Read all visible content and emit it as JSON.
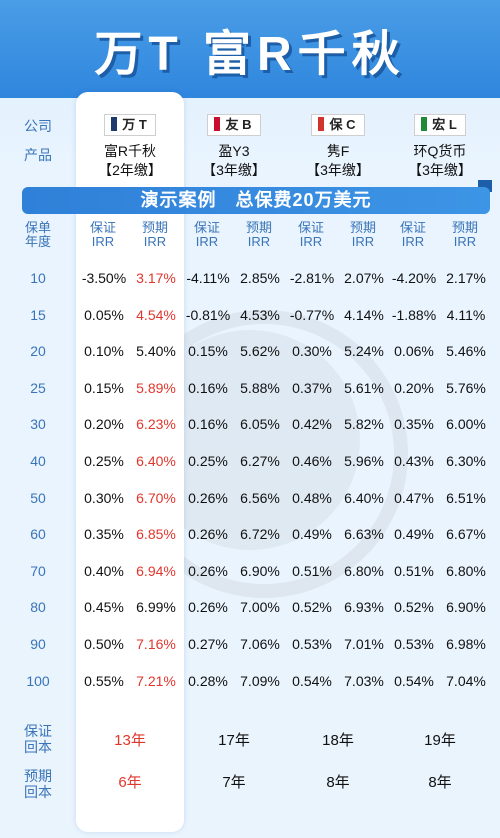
{
  "title": "万T  富R千秋",
  "labels": {
    "company": "公司",
    "product": "产品",
    "baonian_a": "保单",
    "baonian_b": "年度",
    "guar_payback_a": "保证",
    "guar_payback_b": "回本",
    "proj_payback_a": "预期",
    "proj_payback_b": "回本"
  },
  "banner": "演示案例　总保费20万美元",
  "columns": [
    {
      "tag": "万 T",
      "flag_color": "#1d3a6e",
      "product": "富R千秋",
      "term": "【2年缴】",
      "guar_hdr_a": "保证",
      "guar_hdr_b": "IRR",
      "proj_hdr_a": "预期",
      "proj_hdr_b": "IRR",
      "guar_payback": "13年",
      "proj_payback": "6年"
    },
    {
      "tag": "友 B",
      "flag_color": "#c8102e",
      "product": "盈Y3",
      "term": "【3年缴】",
      "guar_hdr_a": "保证",
      "guar_hdr_b": "IRR",
      "proj_hdr_a": "预期",
      "proj_hdr_b": "IRR",
      "guar_payback": "17年",
      "proj_payback": "7年"
    },
    {
      "tag": "保 C",
      "flag_color": "#d0342c",
      "product": "隽F",
      "term": "【3年缴】",
      "guar_hdr_a": "保证",
      "guar_hdr_b": "IRR",
      "proj_hdr_a": "预期",
      "proj_hdr_b": "IRR",
      "guar_payback": "18年",
      "proj_payback": "8年"
    },
    {
      "tag": "宏 L",
      "flag_color": "#1f8a3a",
      "product": "环Q货币",
      "term": "【3年缴】",
      "guar_hdr_a": "保证",
      "guar_hdr_b": "IRR",
      "proj_hdr_a": "预期",
      "proj_hdr_b": "IRR",
      "guar_payback": "19年",
      "proj_payback": "8年"
    }
  ],
  "rows": [
    {
      "year": "10",
      "vals": [
        "-3.50%",
        "3.17%",
        "-4.11%",
        "2.85%",
        "-2.81%",
        "2.07%",
        "-4.20%",
        "2.17%"
      ],
      "red": true
    },
    {
      "year": "15",
      "vals": [
        "0.05%",
        "4.54%",
        "-0.81%",
        "4.53%",
        "-0.77%",
        "4.14%",
        "-1.88%",
        "4.11%"
      ],
      "red": true
    },
    {
      "year": "20",
      "vals": [
        "0.10%",
        "5.40%",
        "0.15%",
        "5.62%",
        "0.30%",
        "5.24%",
        "0.06%",
        "5.46%"
      ],
      "red": false
    },
    {
      "year": "25",
      "vals": [
        "0.15%",
        "5.89%",
        "0.16%",
        "5.88%",
        "0.37%",
        "5.61%",
        "0.20%",
        "5.76%"
      ],
      "red": true
    },
    {
      "year": "30",
      "vals": [
        "0.20%",
        "6.23%",
        "0.16%",
        "6.05%",
        "0.42%",
        "5.82%",
        "0.35%",
        "6.00%"
      ],
      "red": true
    },
    {
      "year": "40",
      "vals": [
        "0.25%",
        "6.40%",
        "0.25%",
        "6.27%",
        "0.46%",
        "5.96%",
        "0.43%",
        "6.30%"
      ],
      "red": true
    },
    {
      "year": "50",
      "vals": [
        "0.30%",
        "6.70%",
        "0.26%",
        "6.56%",
        "0.48%",
        "6.40%",
        "0.47%",
        "6.51%"
      ],
      "red": true
    },
    {
      "year": "60",
      "vals": [
        "0.35%",
        "6.85%",
        "0.26%",
        "6.72%",
        "0.49%",
        "6.63%",
        "0.49%",
        "6.67%"
      ],
      "red": true
    },
    {
      "year": "70",
      "vals": [
        "0.40%",
        "6.94%",
        "0.26%",
        "6.90%",
        "0.51%",
        "6.80%",
        "0.51%",
        "6.80%"
      ],
      "red": true
    },
    {
      "year": "80",
      "vals": [
        "0.45%",
        "6.99%",
        "0.26%",
        "7.00%",
        "0.52%",
        "6.93%",
        "0.52%",
        "6.90%"
      ],
      "red": false
    },
    {
      "year": "90",
      "vals": [
        "0.50%",
        "7.16%",
        "0.27%",
        "7.06%",
        "0.53%",
        "7.01%",
        "0.53%",
        "6.98%"
      ],
      "red": true
    },
    {
      "year": "100",
      "vals": [
        "0.55%",
        "7.21%",
        "0.28%",
        "7.09%",
        "0.54%",
        "7.03%",
        "0.54%",
        "7.04%"
      ],
      "red": true
    }
  ],
  "colors": {
    "accent": "#2f86dd",
    "highlight": "#e0362c",
    "label": "#3a74b8"
  }
}
